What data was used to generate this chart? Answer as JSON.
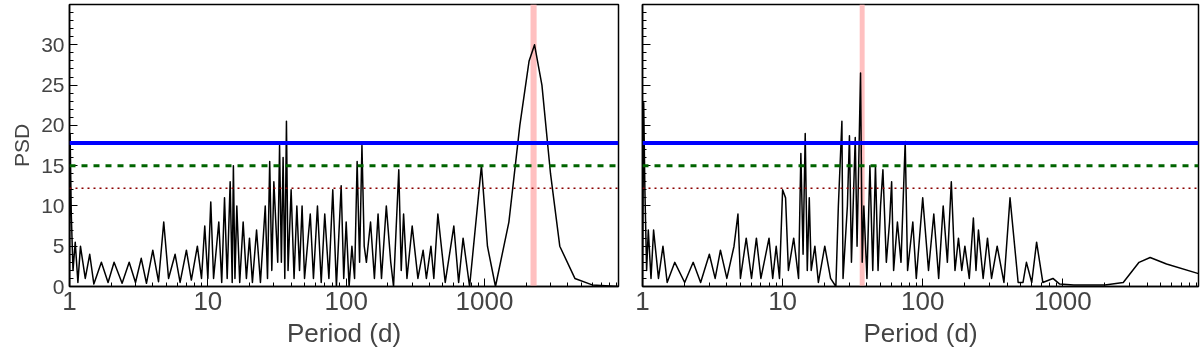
{
  "chart_data": [
    {
      "type": "line",
      "xlabel": "Period (d)",
      "ylabel": "PSD",
      "log": "x",
      "xlim": [
        1,
        9300
      ],
      "ylim": [
        0,
        35
      ],
      "xticks": [
        1,
        10,
        100,
        1000
      ],
      "yticks": [
        0,
        5,
        10,
        15,
        20,
        25,
        30
      ],
      "grid": false,
      "marker": "none",
      "line_style": "solid",
      "series": [
        {
          "color": "#000000",
          "x": [
            1.0,
            1.01,
            1.03,
            1.06,
            1.1,
            1.15,
            1.2,
            1.3,
            1.4,
            1.5,
            1.7,
            1.9,
            2.1,
            2.4,
            2.7,
            3,
            3.3,
            3.6,
            4,
            4.4,
            4.8,
            5.2,
            5.8,
            6.3,
            7,
            7.6,
            8.4,
            9,
            9.5,
            10,
            10.5,
            11,
            12,
            12.6,
            13.2,
            13.8,
            14.5,
            15,
            15.3,
            15.7,
            16.2,
            17,
            18,
            19,
            20,
            21,
            22.5,
            24,
            26,
            27,
            28,
            29,
            30,
            32,
            33,
            34,
            35,
            36,
            37,
            38,
            40,
            42,
            44,
            46,
            48,
            50,
            55,
            58,
            62,
            66,
            70,
            75,
            80,
            85,
            92,
            96,
            100,
            105,
            110,
            115,
            120,
            125,
            130,
            135,
            140,
            150,
            160,
            170,
            180,
            195,
            210,
            220,
            240,
            250,
            260,
            275,
            300,
            330,
            360,
            380,
            410,
            430,
            460,
            520,
            600,
            650,
            700,
            780,
            950,
            1050,
            1200,
            1500,
            1800,
            2100,
            2300,
            2600,
            3000,
            3500,
            4500,
            6000,
            9300
          ],
          "values": [
            0,
            19,
            9,
            2,
            5.5,
            0.5,
            5,
            1,
            4,
            0.3,
            3,
            0.5,
            3,
            0.4,
            3,
            0.5,
            3.5,
            0.4,
            4.5,
            0.6,
            8,
            1,
            4,
            0.5,
            4.5,
            0.8,
            5,
            1,
            7.5,
            1,
            10.5,
            1,
            8,
            0.5,
            11,
            1,
            13,
            0.5,
            15,
            1,
            10,
            0.5,
            8,
            1,
            6,
            0.5,
            7,
            0.5,
            10,
            1,
            15.5,
            2,
            13,
            3,
            17.5,
            3,
            16,
            1,
            20.5,
            2,
            12,
            1,
            10,
            2,
            10,
            1,
            9,
            1,
            10,
            0.5,
            9,
            1,
            12,
            0,
            12.5,
            1,
            8,
            0,
            5,
            1,
            15.5,
            3,
            17.5,
            5,
            3,
            8,
            1,
            9,
            1,
            10,
            3,
            0,
            14.5,
            2,
            9,
            1,
            7.5,
            1,
            4.5,
            1,
            5,
            1,
            9,
            0.5,
            7.5,
            0.5,
            6,
            0,
            15,
            5,
            0,
            8,
            20,
            28,
            30,
            25,
            14,
            5,
            1,
            0.2,
            0
          ]
        }
      ],
      "ref_lines": [
        {
          "axis": "y",
          "value": 17.8,
          "color": "#0000ff",
          "line_style": "solid"
        },
        {
          "axis": "y",
          "value": 15,
          "color": "#006400",
          "line_style": "dashed"
        },
        {
          "axis": "y",
          "value": 12.2,
          "color": "#8b0000",
          "line_style": "dotted"
        }
      ],
      "bands": [
        {
          "axis": "x",
          "from": 2150,
          "to": 2380,
          "color": "#ffc0c0"
        }
      ]
    },
    {
      "type": "line",
      "xlabel": "Period (d)",
      "log": "x",
      "xlim": [
        1,
        9300
      ],
      "ylim": [
        0,
        35
      ],
      "xticks": [
        1,
        10,
        100,
        1000
      ],
      "yticks": [
        0,
        5,
        10,
        15,
        20,
        25,
        30
      ],
      "tick_labels": "x",
      "grid": false,
      "marker": "none",
      "line_style": "solid",
      "series": [
        {
          "color": "#000000",
          "x": [
            1.0,
            1.02,
            1.04,
            1.07,
            1.1,
            1.15,
            1.2,
            1.3,
            1.4,
            1.5,
            1.7,
            2,
            2.3,
            2.6,
            3,
            3.3,
            3.6,
            4,
            4.5,
            4.8,
            5,
            5.5,
            6,
            6.5,
            7,
            8,
            8.5,
            9,
            9.5,
            10,
            10.5,
            11,
            12,
            13,
            13.5,
            14,
            14.5,
            15,
            15.5,
            16,
            17,
            18,
            20,
            22,
            24,
            25,
            26.5,
            27,
            29,
            30,
            31,
            33,
            34,
            36,
            37,
            38,
            40,
            42,
            44,
            46,
            48,
            50,
            52,
            55,
            58,
            60,
            62,
            66,
            70,
            75,
            78,
            85,
            90,
            100,
            110,
            120,
            130,
            140,
            150,
            160,
            170,
            180,
            190,
            200,
            215,
            230,
            240,
            250,
            270,
            290,
            310,
            340,
            380,
            420,
            480,
            520,
            550,
            600,
            650,
            720,
            850,
            950,
            1200,
            2000,
            2700,
            3500,
            4200,
            5500,
            9300
          ],
          "values": [
            0,
            22.8,
            12,
            2,
            7,
            1,
            7,
            1,
            5,
            0.5,
            3,
            0.5,
            3,
            0.5,
            4,
            1,
            4.5,
            1,
            5,
            9,
            1,
            6,
            1,
            6,
            1,
            6,
            1,
            5,
            1,
            12,
            11,
            2,
            6,
            1,
            16.5,
            4,
            19,
            2,
            11,
            2,
            5,
            0.5,
            5,
            1,
            0,
            10,
            20.5,
            1,
            10,
            18.7,
            3,
            18.5,
            5,
            26.5,
            3,
            10,
            1,
            15,
            2,
            15,
            2,
            10,
            14.5,
            3,
            8,
            13,
            2,
            8,
            3,
            18,
            2,
            8,
            1,
            11,
            2,
            9,
            1,
            10,
            3,
            13,
            2,
            6,
            2,
            5,
            1,
            8.5,
            2,
            7,
            1,
            6,
            1,
            5,
            0.5,
            11,
            0.5,
            0.5,
            3,
            0.5,
            5.5,
            0.5,
            1,
            0.3,
            0.2,
            0.2,
            0.5,
            3,
            3.6,
            2.8,
            1.6
          ]
        }
      ],
      "ref_lines": [
        {
          "axis": "y",
          "value": 17.8,
          "color": "#0000ff",
          "line_style": "solid"
        },
        {
          "axis": "y",
          "value": 15,
          "color": "#006400",
          "line_style": "dashed"
        },
        {
          "axis": "y",
          "value": 12.2,
          "color": "#8b0000",
          "line_style": "dotted"
        }
      ],
      "bands": [
        {
          "axis": "x",
          "from": 35.5,
          "to": 38.5,
          "color": "#ffc0c0"
        }
      ]
    }
  ]
}
